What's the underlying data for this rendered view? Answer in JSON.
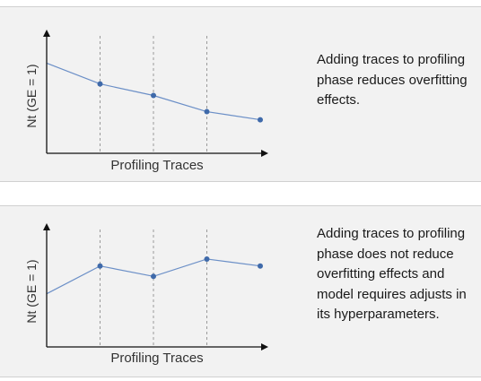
{
  "panels": [
    {
      "chart_data": {
        "type": "line",
        "title": "",
        "xlabel": "Profiling Traces",
        "ylabel": "Nt (GE = 1)",
        "x": [
          0,
          1,
          2,
          3,
          4
        ],
        "values": [
          0.78,
          0.6,
          0.5,
          0.36,
          0.29
        ],
        "ylim": [
          0,
          1
        ],
        "grid": "vertical dashed at x = 1, 2, 3"
      },
      "text": "Adding traces to profiling phase reduces overfitting effects."
    },
    {
      "chart_data": {
        "type": "line",
        "title": "",
        "xlabel": "Profiling Traces",
        "ylabel": "Nt (GE = 1)",
        "x": [
          0,
          1,
          2,
          3,
          4
        ],
        "values": [
          0.46,
          0.7,
          0.61,
          0.76,
          0.7
        ],
        "ylim": [
          0,
          1
        ],
        "grid": "vertical dashed at x = 1, 2, 3"
      },
      "text": "Adding traces to profiling phase does not reduce overfitting effects and model requires adjusts in its hyperparameters."
    }
  ],
  "colors": {
    "line": "#6b8fc7",
    "marker": "#3f6aaa",
    "axis": "#111111",
    "grid": "#9a9a9a",
    "panel_bg": "#f2f2f2"
  }
}
